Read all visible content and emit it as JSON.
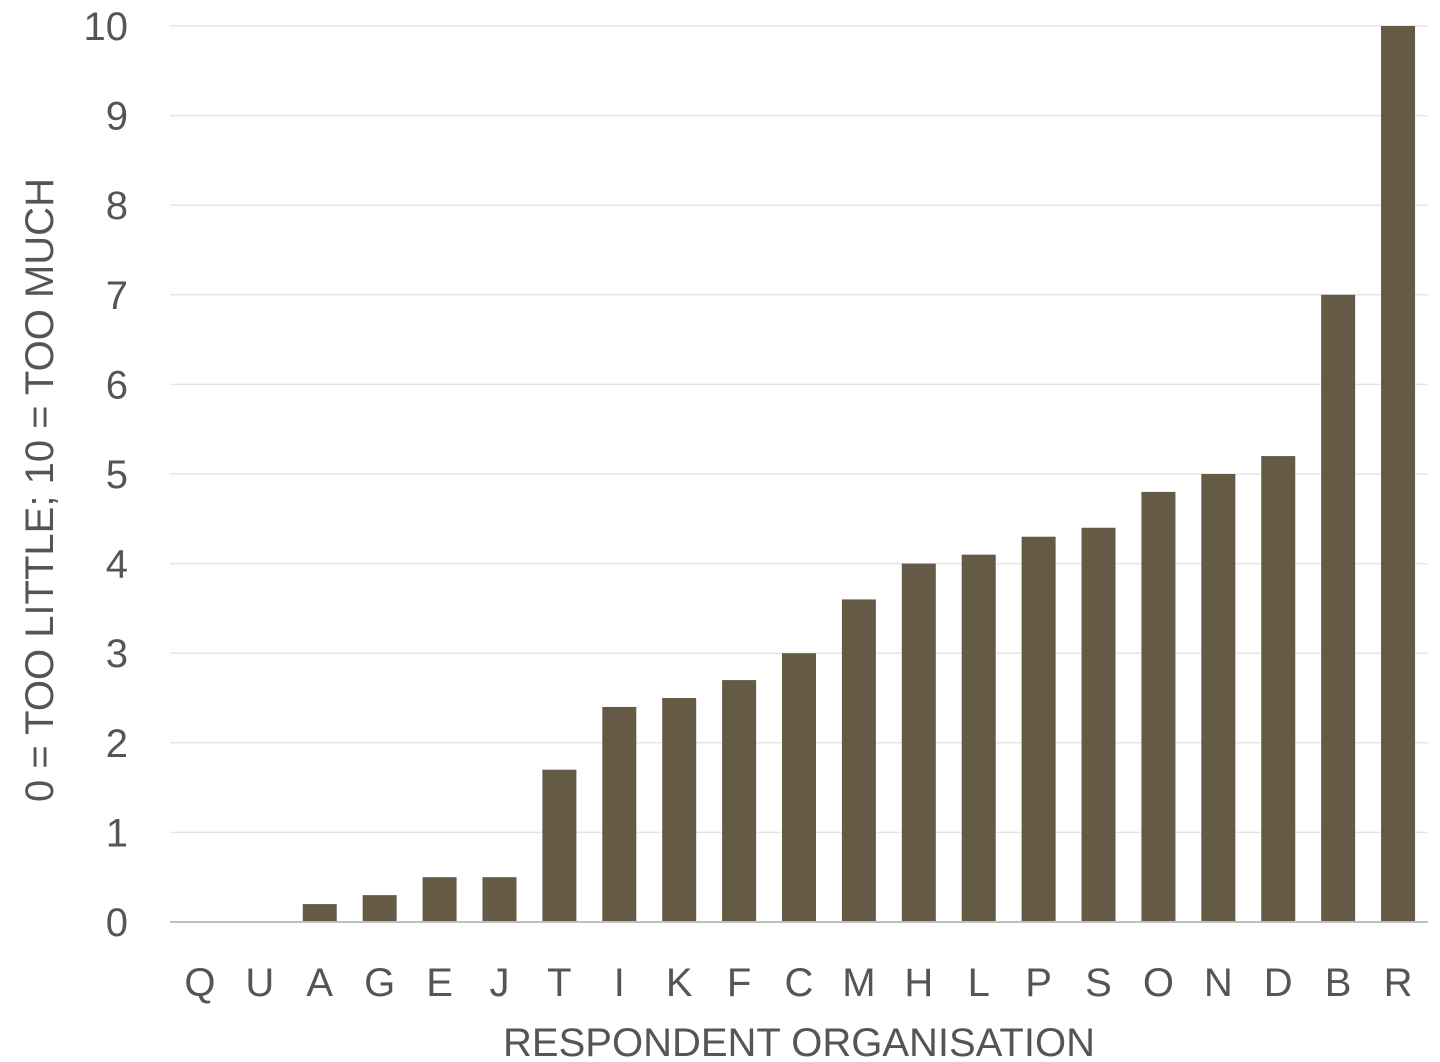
{
  "chart_data": {
    "type": "bar",
    "categories": [
      "Q",
      "U",
      "A",
      "G",
      "E",
      "J",
      "T",
      "I",
      "K",
      "F",
      "C",
      "M",
      "H",
      "L",
      "P",
      "S",
      "O",
      "N",
      "D",
      "B",
      "R"
    ],
    "values": [
      0,
      0,
      0.2,
      0.3,
      0.5,
      0.5,
      1.7,
      2.4,
      2.5,
      2.7,
      3,
      3.6,
      4,
      4.1,
      4.3,
      4.4,
      4.8,
      5,
      5.2,
      7,
      10
    ],
    "xlabel": "RESPONDENT ORGANISATION",
    "ylabel": "0 = TOO LITTLE; 10 = TOO MUCH",
    "ylim": [
      0,
      10
    ],
    "yticks": [
      0,
      1,
      2,
      3,
      4,
      5,
      6,
      7,
      8,
      9,
      10
    ],
    "grid": true,
    "bar_color": "#655a45"
  }
}
